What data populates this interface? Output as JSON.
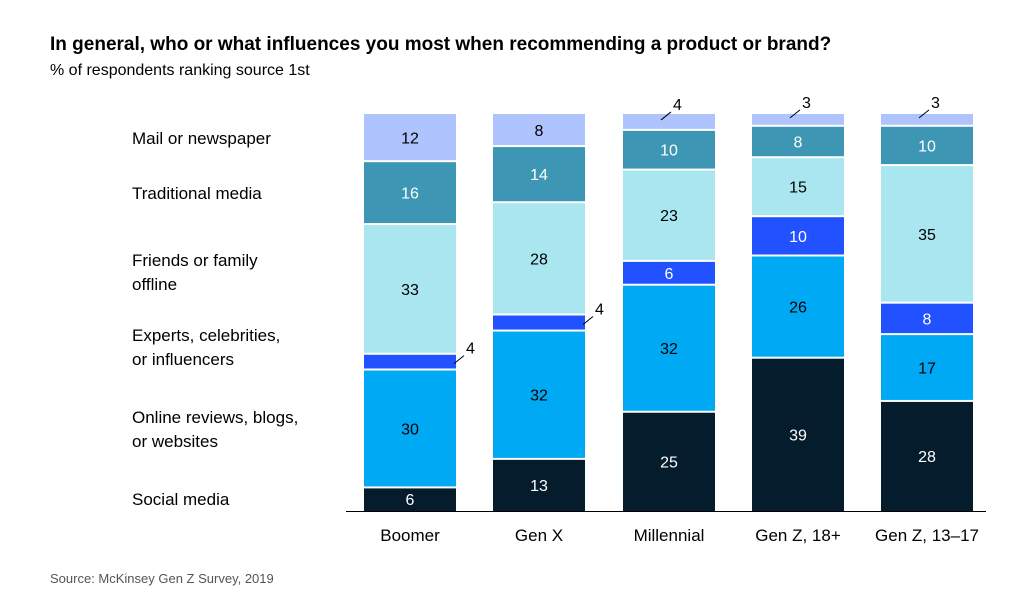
{
  "title": "In general, who or what influences you most when recommending a product or brand?",
  "subtitle": "% of respondents ranking source 1st",
  "source": "Source: McKinsey Gen Z Survey, 2019",
  "chart_data": {
    "type": "bar",
    "stacked": true,
    "categories": [
      "Boomer",
      "Gen X",
      "Millennial",
      "Gen Z, 18+",
      "Gen Z, 13–17"
    ],
    "series": [
      {
        "name": "Social media",
        "lines": [
          "Social media"
        ],
        "color": "#051c2c",
        "label_color": "#ffffff",
        "values": [
          6,
          13,
          25,
          39,
          28
        ]
      },
      {
        "name": "Online reviews, blogs, or websites",
        "lines": [
          "Online reviews, blogs,",
          "or websites"
        ],
        "color": "#00a9f4",
        "label_color": "#000000",
        "values": [
          30,
          32,
          32,
          26,
          17
        ]
      },
      {
        "name": "Experts, celebrities, or influencers",
        "lines": [
          "Experts, celebrities,",
          "or influencers"
        ],
        "color": "#2251ff",
        "label_color": "#ffffff",
        "values": [
          4,
          4,
          6,
          10,
          8
        ]
      },
      {
        "name": "Friends or family offline",
        "lines": [
          "Friends or family",
          "offline"
        ],
        "color": "#aae6f0",
        "label_color": "#000000",
        "values": [
          33,
          28,
          23,
          15,
          35
        ]
      },
      {
        "name": "Traditional media",
        "lines": [
          "Traditional media"
        ],
        "color": "#3c96b4",
        "label_color": "#ffffff",
        "values": [
          16,
          14,
          10,
          8,
          10
        ]
      },
      {
        "name": "Mail or newspaper",
        "lines": [
          "Mail or newspaper"
        ],
        "color": "#afc3ff",
        "label_color": "#000000",
        "values": [
          12,
          8,
          4,
          3,
          3
        ]
      }
    ],
    "legend_position": "left",
    "grid": false,
    "ylim": [
      0,
      100
    ]
  }
}
